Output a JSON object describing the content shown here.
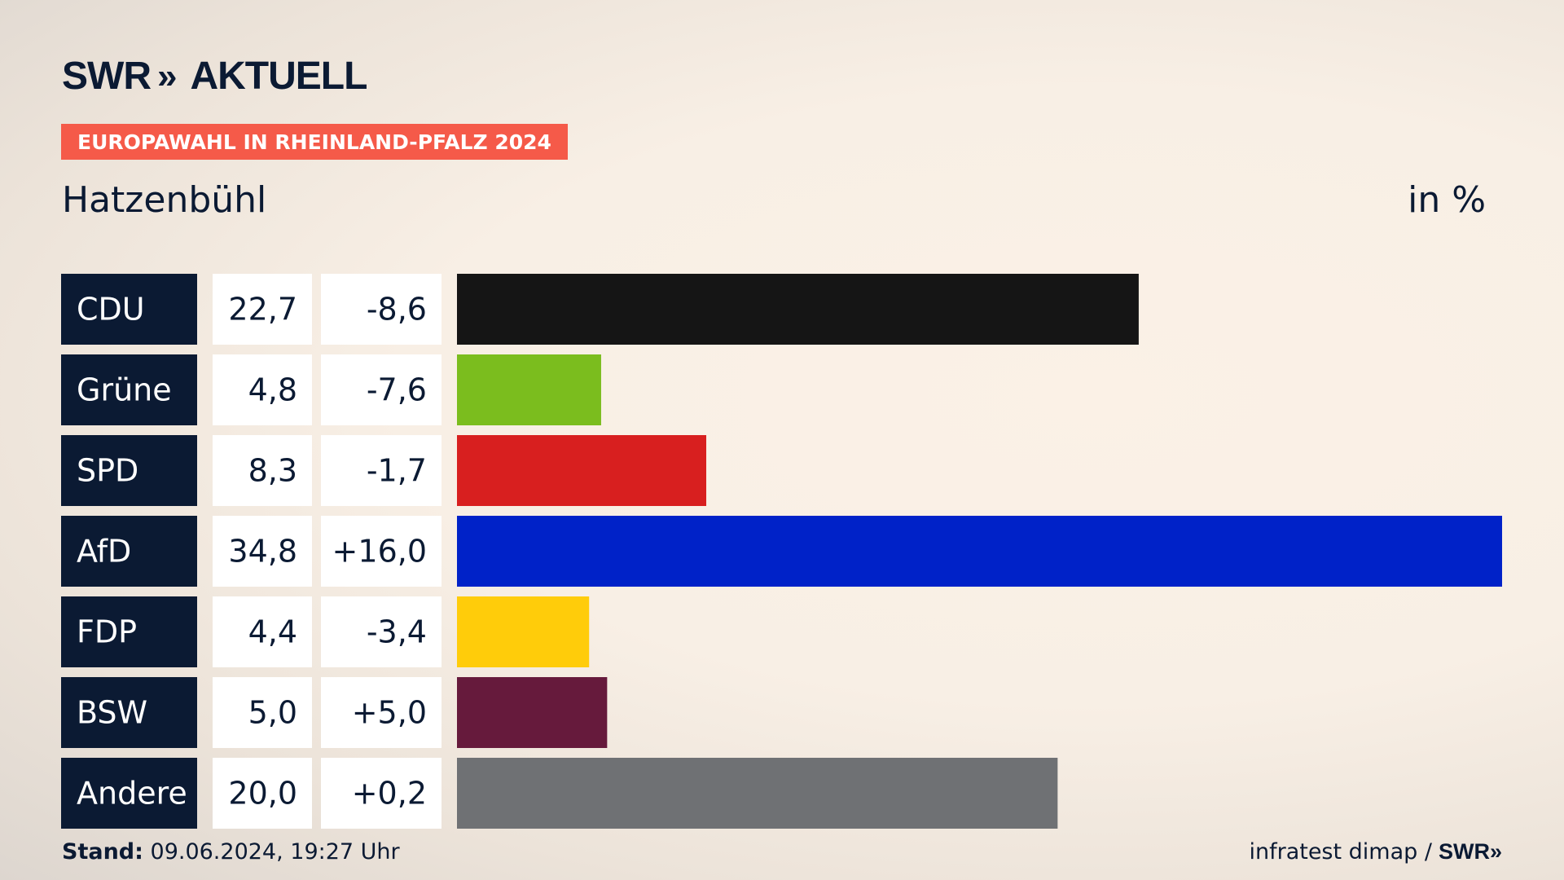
{
  "header": {
    "logo_text": "SWR",
    "logo_chevrons": "»",
    "logo_suffix": "AKTUELL",
    "badge": "EUROPAWAHL IN RHEINLAND-PFALZ 2024",
    "region": "Hatzenbühl",
    "unit": "in %"
  },
  "footer": {
    "stand_label": "Stand:",
    "stand_value": "09.06.2024, 19:27 Uhr",
    "source": "infratest dimap /",
    "source_logo": "SWR»"
  },
  "chart_data": {
    "type": "bar",
    "orientation": "horizontal",
    "categories": [
      "CDU",
      "Grüne",
      "SPD",
      "AfD",
      "FDP",
      "BSW",
      "Andere"
    ],
    "values": [
      22.7,
      4.8,
      8.3,
      34.8,
      4.4,
      5.0,
      20.0
    ],
    "value_labels": [
      "22,7",
      "4,8",
      "8,3",
      "34,8",
      "4,4",
      "5,0",
      "20,0"
    ],
    "change_labels": [
      "-8,6",
      "-7,6",
      "-1,7",
      "+16,0",
      "-3,4",
      "+5,0",
      "+0,2"
    ],
    "changes": [
      -8.6,
      -7.6,
      -1.7,
      16.0,
      -3.4,
      5.0,
      0.2
    ],
    "colors": [
      "#151515",
      "#7bbd1e",
      "#d81f1f",
      "#0022c8",
      "#ffcc0a",
      "#661a3c",
      "#6f7174"
    ],
    "label_bg": "#0b1a33",
    "xlim": [
      0,
      34.8
    ]
  }
}
